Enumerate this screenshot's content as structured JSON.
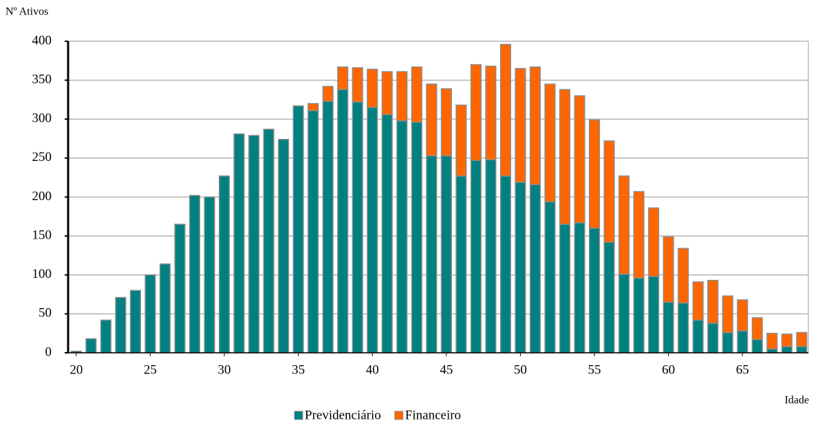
{
  "chart_data": {
    "type": "stacked_bar",
    "y_axis_label": "Nº Ativos",
    "x_axis_label": "Idade",
    "x": [
      20,
      21,
      22,
      23,
      24,
      25,
      26,
      27,
      28,
      29,
      30,
      31,
      32,
      33,
      34,
      35,
      36,
      37,
      38,
      39,
      40,
      41,
      42,
      43,
      44,
      45,
      46,
      47,
      48,
      49,
      50,
      51,
      52,
      53,
      54,
      55,
      56,
      57,
      58,
      59,
      60,
      61,
      62,
      63,
      64,
      65,
      66,
      67,
      68,
      69
    ],
    "series": [
      {
        "name": "Previdenciário",
        "color": "#008080",
        "values": [
          2,
          18,
          42,
          71,
          80,
          100,
          114,
          165,
          202,
          200,
          227,
          281,
          279,
          287,
          274,
          317,
          311,
          323,
          338,
          322,
          315,
          306,
          298,
          296,
          253,
          253,
          227,
          247,
          248,
          227,
          219,
          216,
          194,
          165,
          167,
          160,
          142,
          101,
          96,
          98,
          65,
          64,
          42,
          38,
          26,
          28,
          17,
          5,
          8,
          8
        ]
      },
      {
        "name": "Financeiro",
        "color": "#ff6600",
        "values": [
          0,
          0,
          0,
          0,
          0,
          0,
          0,
          0,
          0,
          0,
          0,
          0,
          0,
          0,
          0,
          0,
          9,
          19,
          29,
          44,
          49,
          55,
          63,
          71,
          92,
          86,
          91,
          123,
          120,
          169,
          146,
          151,
          151,
          173,
          163,
          139,
          130,
          126,
          111,
          88,
          84,
          70,
          49,
          55,
          47,
          40,
          28,
          20,
          16,
          18
        ]
      }
    ],
    "xlim": [
      19.45,
      69.45
    ],
    "xticks": [
      20,
      25,
      30,
      35,
      40,
      45,
      50,
      55,
      60,
      65
    ],
    "ylim": [
      0,
      400
    ],
    "yticks": [
      0,
      50,
      100,
      150,
      200,
      250,
      300,
      350,
      400
    ],
    "grid": true
  }
}
